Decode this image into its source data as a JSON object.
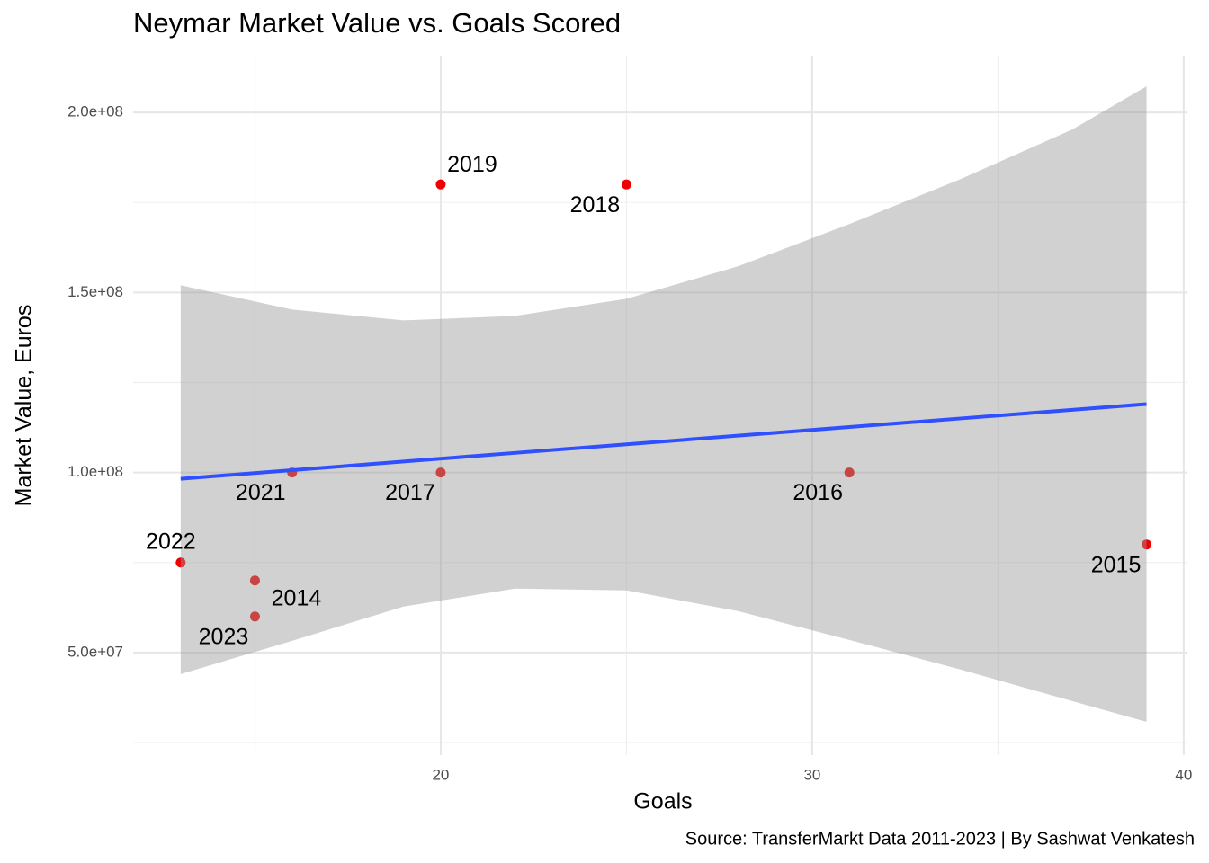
{
  "chart_data": {
    "type": "scatter",
    "title": "Neymar Market Value vs. Goals Scored",
    "x_label": "Goals",
    "y_label": "Market Value, Euros",
    "caption": "Source: TransferMarkt Data 2011-2023 | By Sashwat Venkatesh",
    "x": [
      20,
      25,
      16,
      20,
      31,
      39,
      13,
      15,
      15
    ],
    "values": [
      180000000,
      180000000,
      100000000,
      100000000,
      100000000,
      80000000,
      75000000,
      70000000,
      60000000
    ],
    "point_labels": [
      "2019",
      "2018",
      "2021",
      "2017",
      "2016",
      "2015",
      "2022",
      "2014",
      "2023"
    ],
    "color": "#ee0000",
    "smooth": {
      "color": "#3050ff",
      "band_color": "#999999",
      "x": [
        13,
        16,
        19,
        22,
        25,
        28,
        31,
        34,
        37,
        39
      ],
      "values": [
        98250000,
        100650000,
        103040000,
        105440000,
        107830000,
        110230000,
        112620000,
        115020000,
        117410000,
        119000000
      ],
      "lower": [
        44000000,
        53250000,
        62750000,
        67750000,
        67250000,
        61500000,
        53500000,
        45250000,
        36500000,
        30750000
      ],
      "upper": [
        152000000,
        145250000,
        142250000,
        143500000,
        148250000,
        157250000,
        169000000,
        181500000,
        195250000,
        207250000
      ]
    },
    "xlim": [
      11.72,
      40.1
    ],
    "ylim": [
      21500000,
      215750000
    ],
    "xticks": [
      20,
      30,
      40
    ],
    "xminor": [
      15,
      25,
      35
    ],
    "yticks": [
      {
        "value": 50000000,
        "label": "5.0e+07"
      },
      {
        "value": 100000000,
        "label": "1.0e+08"
      },
      {
        "value": 150000000,
        "label": "1.5e+08"
      },
      {
        "value": 200000000,
        "label": "2.0e+08"
      }
    ],
    "yminor": [
      25000000,
      75000000,
      125000000,
      175000000
    ],
    "grid": true
  }
}
